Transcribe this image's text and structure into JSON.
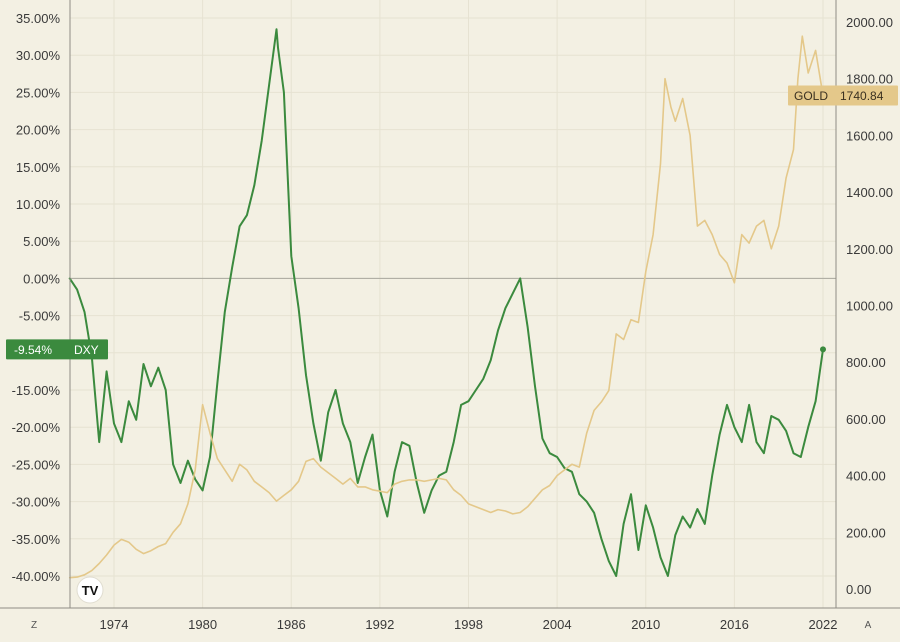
{
  "chart_data": {
    "type": "line",
    "x_tick_labels": [
      "1974",
      "1980",
      "1986",
      "1992",
      "1998",
      "2004",
      "2010",
      "2016",
      "2022"
    ],
    "left_axis": {
      "ticks": [
        "35.00%",
        "30.00%",
        "25.00%",
        "20.00%",
        "15.00%",
        "10.00%",
        "5.00%",
        "0.00%",
        "-5.00%",
        "-10.00%",
        "-15.00%",
        "-20.00%",
        "-25.00%",
        "-30.00%",
        "-35.00%",
        "-40.00%"
      ],
      "range": [
        -40,
        35
      ],
      "unit": "%"
    },
    "right_axis": {
      "ticks": [
        "2000.00",
        "1800.00",
        "1600.00",
        "1400.00",
        "1200.00",
        "1000.00",
        "800.00",
        "600.00",
        "400.00",
        "200.00",
        "0.00"
      ],
      "range": [
        0,
        2000
      ]
    },
    "x_range": [
      1971,
      2022.4
    ],
    "baseline": 0,
    "series": [
      {
        "name": "DXY",
        "axis": "left",
        "color": "#3b8a3e",
        "last_value_label": "-9.54%",
        "x": [
          1971.0,
          1971.5,
          1972.0,
          1972.5,
          1973.0,
          1973.5,
          1974.0,
          1974.5,
          1975.0,
          1975.5,
          1976.0,
          1976.5,
          1977.0,
          1977.5,
          1978.0,
          1978.5,
          1979.0,
          1979.5,
          1980.0,
          1980.5,
          1981.0,
          1981.5,
          1982.0,
          1982.5,
          1983.0,
          1983.5,
          1984.0,
          1984.5,
          1985.0,
          1985.1,
          1985.5,
          1986.0,
          1986.5,
          1987.0,
          1987.5,
          1988.0,
          1988.5,
          1989.0,
          1989.5,
          1990.0,
          1990.5,
          1991.0,
          1991.5,
          1992.0,
          1992.5,
          1993.0,
          1993.5,
          1994.0,
          1994.5,
          1995.0,
          1995.5,
          1996.0,
          1996.5,
          1997.0,
          1997.5,
          1998.0,
          1998.5,
          1999.0,
          1999.5,
          2000.0,
          2000.5,
          2001.0,
          2001.5,
          2002.0,
          2002.5,
          2003.0,
          2003.5,
          2004.0,
          2004.5,
          2005.0,
          2005.5,
          2006.0,
          2006.5,
          2007.0,
          2007.5,
          2008.0,
          2008.5,
          2009.0,
          2009.5,
          2010.0,
          2010.5,
          2011.0,
          2011.5,
          2012.0,
          2012.5,
          2013.0,
          2013.5,
          2014.0,
          2014.5,
          2015.0,
          2015.5,
          2016.0,
          2016.5,
          2017.0,
          2017.5,
          2018.0,
          2018.5,
          2019.0,
          2019.5,
          2020.0,
          2020.5,
          2021.0,
          2021.5,
          2022.0
        ],
        "values": [
          0.0,
          -1.5,
          -4.5,
          -10.5,
          -22.0,
          -12.5,
          -19.5,
          -22.0,
          -16.5,
          -19.0,
          -11.5,
          -14.5,
          -12.0,
          -15.0,
          -25.0,
          -27.5,
          -24.5,
          -27.0,
          -28.5,
          -24.0,
          -14.0,
          -4.5,
          1.5,
          7.0,
          8.5,
          12.5,
          18.5,
          26.0,
          33.5,
          31.0,
          25.0,
          3.0,
          -4.0,
          -13.0,
          -19.5,
          -24.5,
          -18.0,
          -15.0,
          -19.5,
          -22.0,
          -27.5,
          -24.0,
          -21.0,
          -28.5,
          -32.0,
          -26.0,
          -22.0,
          -22.5,
          -27.5,
          -31.5,
          -28.5,
          -26.5,
          -26.0,
          -22.0,
          -17.0,
          -16.5,
          -15.0,
          -13.5,
          -11.0,
          -7.0,
          -4.0,
          -2.0,
          0.0,
          -6.5,
          -14.5,
          -21.5,
          -23.5,
          -24.0,
          -25.5,
          -26.0,
          -29.0,
          -30.0,
          -31.5,
          -35.0,
          -38.0,
          -40.0,
          -33.0,
          -29.0,
          -36.5,
          -30.5,
          -33.5,
          -37.5,
          -40.0,
          -34.5,
          -32.0,
          -33.5,
          -31.0,
          -33.0,
          -26.5,
          -21.0,
          -17.0,
          -20.0,
          -22.0,
          -17.0,
          -22.0,
          -23.5,
          -18.5,
          -19.0,
          -20.5,
          -23.5,
          -24.0,
          -20.0,
          -16.5,
          -9.54
        ]
      },
      {
        "name": "GOLD",
        "axis": "right",
        "color": "#e4c88a",
        "last_value_label": "1740.84",
        "x": [
          1971.0,
          1971.5,
          1972.0,
          1972.5,
          1973.0,
          1973.5,
          1974.0,
          1974.5,
          1975.0,
          1975.5,
          1976.0,
          1976.5,
          1977.0,
          1977.5,
          1978.0,
          1978.5,
          1979.0,
          1979.5,
          1980.0,
          1980.5,
          1981.0,
          1981.5,
          1982.0,
          1982.5,
          1983.0,
          1983.5,
          1984.0,
          1984.5,
          1985.0,
          1985.5,
          1986.0,
          1986.5,
          1987.0,
          1987.5,
          1988.0,
          1988.5,
          1989.0,
          1989.5,
          1990.0,
          1990.5,
          1991.0,
          1991.5,
          1992.0,
          1992.5,
          1993.0,
          1993.5,
          1994.0,
          1994.5,
          1995.0,
          1995.5,
          1996.0,
          1996.5,
          1997.0,
          1997.5,
          1998.0,
          1998.5,
          1999.0,
          1999.5,
          2000.0,
          2000.5,
          2001.0,
          2001.5,
          2002.0,
          2002.5,
          2003.0,
          2003.5,
          2004.0,
          2004.5,
          2005.0,
          2005.5,
          2006.0,
          2006.5,
          2007.0,
          2007.5,
          2008.0,
          2008.5,
          2009.0,
          2009.5,
          2010.0,
          2010.5,
          2011.0,
          2011.3,
          2011.7,
          2012.0,
          2012.5,
          2013.0,
          2013.5,
          2014.0,
          2014.5,
          2015.0,
          2015.5,
          2016.0,
          2016.5,
          2017.0,
          2017.5,
          2018.0,
          2018.5,
          2019.0,
          2019.5,
          2020.0,
          2020.3,
          2020.6,
          2021.0,
          2021.5,
          2022.0
        ],
        "values": [
          40,
          42,
          50,
          65,
          90,
          120,
          155,
          175,
          165,
          140,
          125,
          135,
          150,
          160,
          200,
          230,
          300,
          420,
          650,
          550,
          460,
          420,
          380,
          440,
          420,
          380,
          360,
          340,
          310,
          330,
          350,
          380,
          450,
          460,
          430,
          410,
          390,
          370,
          390,
          360,
          360,
          350,
          345,
          340,
          370,
          380,
          385,
          385,
          380,
          385,
          390,
          385,
          350,
          330,
          300,
          290,
          280,
          270,
          280,
          275,
          265,
          270,
          290,
          320,
          350,
          365,
          400,
          420,
          440,
          430,
          550,
          630,
          660,
          700,
          900,
          880,
          950,
          940,
          1120,
          1250,
          1500,
          1800,
          1700,
          1650,
          1730,
          1600,
          1280,
          1300,
          1250,
          1180,
          1150,
          1080,
          1250,
          1220,
          1280,
          1300,
          1200,
          1280,
          1450,
          1550,
          1800,
          1950,
          1820,
          1900,
          1740.84
        ]
      }
    ],
    "footer_buttons": [
      "Z",
      "A"
    ],
    "logo_text": "TV"
  }
}
